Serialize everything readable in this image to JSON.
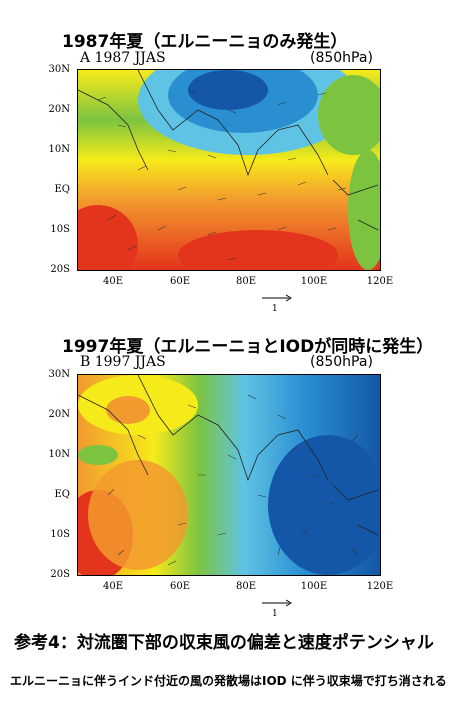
{
  "panel_a": {
    "title": "1987年夏（エルニーニョのみ発生）",
    "label": "A 1987 JJAS",
    "pressure": "(850hPa)",
    "y_ticks": [
      "30N",
      "20N",
      "10N",
      "EQ",
      "10S",
      "20S"
    ],
    "x_ticks": [
      "40E",
      "60E",
      "80E",
      "100E",
      "120E"
    ],
    "ref_vector": "1"
  },
  "panel_b": {
    "title": "1997年夏（エルニーニョとIODが同時に発生）",
    "label": "B 1997 JJAS",
    "pressure": "(850hPa)",
    "y_ticks": [
      "30N",
      "20N",
      "10N",
      "EQ",
      "10S",
      "20S"
    ],
    "x_ticks": [
      "40E",
      "60E",
      "80E",
      "100E",
      "120E"
    ],
    "ref_vector": "1"
  },
  "caption": "参考4：対流圏下部の収束風の偏差と速度ポテンシャル",
  "note": "エルニーニョに伴うインド付近の風の発散場はIOD に伴う収束場で打ち消される",
  "colors": {
    "red": "#e3341c",
    "orange": "#f29a2e",
    "yellow": "#f7ea1a",
    "green": "#7cc440",
    "light_blue": "#5fc3e4",
    "blue": "#2a8fd1",
    "dark_blue": "#1457a8"
  }
}
